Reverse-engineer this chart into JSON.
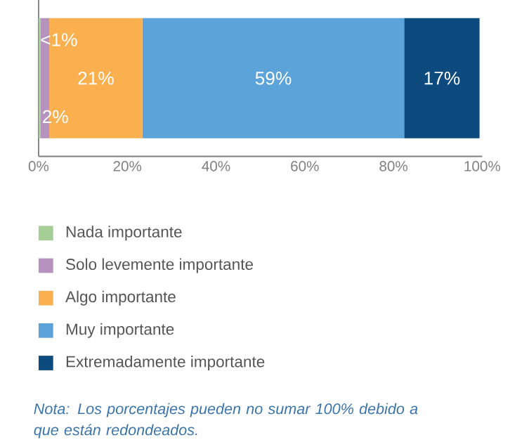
{
  "chart_data": {
    "type": "bar",
    "orientation": "horizontal",
    "stacked": true,
    "categories": [
      null
    ],
    "series": [
      {
        "name": "Nada importante",
        "color": "#a5cd96",
        "values": [
          0.4
        ],
        "value_labels": [
          "<1%"
        ]
      },
      {
        "name": "Solo levemente importante",
        "color": "#b593be",
        "values": [
          2
        ],
        "value_labels": [
          "2%"
        ]
      },
      {
        "name": "Algo importante",
        "color": "#fbb050",
        "values": [
          21
        ],
        "value_labels": [
          "21%"
        ]
      },
      {
        "name": "Muy importante",
        "color": "#5ba3d8",
        "values": [
          59
        ],
        "value_labels": [
          "59%"
        ]
      },
      {
        "name": "Extremadamente importante",
        "color": "#0d4a7e",
        "values": [
          17
        ],
        "value_labels": [
          "17%"
        ]
      }
    ],
    "xlim": [
      0,
      100
    ],
    "xticks": [
      {
        "value": 0,
        "label": "0%"
      },
      {
        "value": 20,
        "label": "20%"
      },
      {
        "value": 40,
        "label": "40%"
      },
      {
        "value": 60,
        "label": "60%"
      },
      {
        "value": 80,
        "label": "80%"
      },
      {
        "value": 100,
        "label": "100%"
      }
    ],
    "legend": "bottom",
    "annotations": [
      "Nota: Los porcentajes pueden no sumar 100% debido a que están redondeados."
    ]
  }
}
